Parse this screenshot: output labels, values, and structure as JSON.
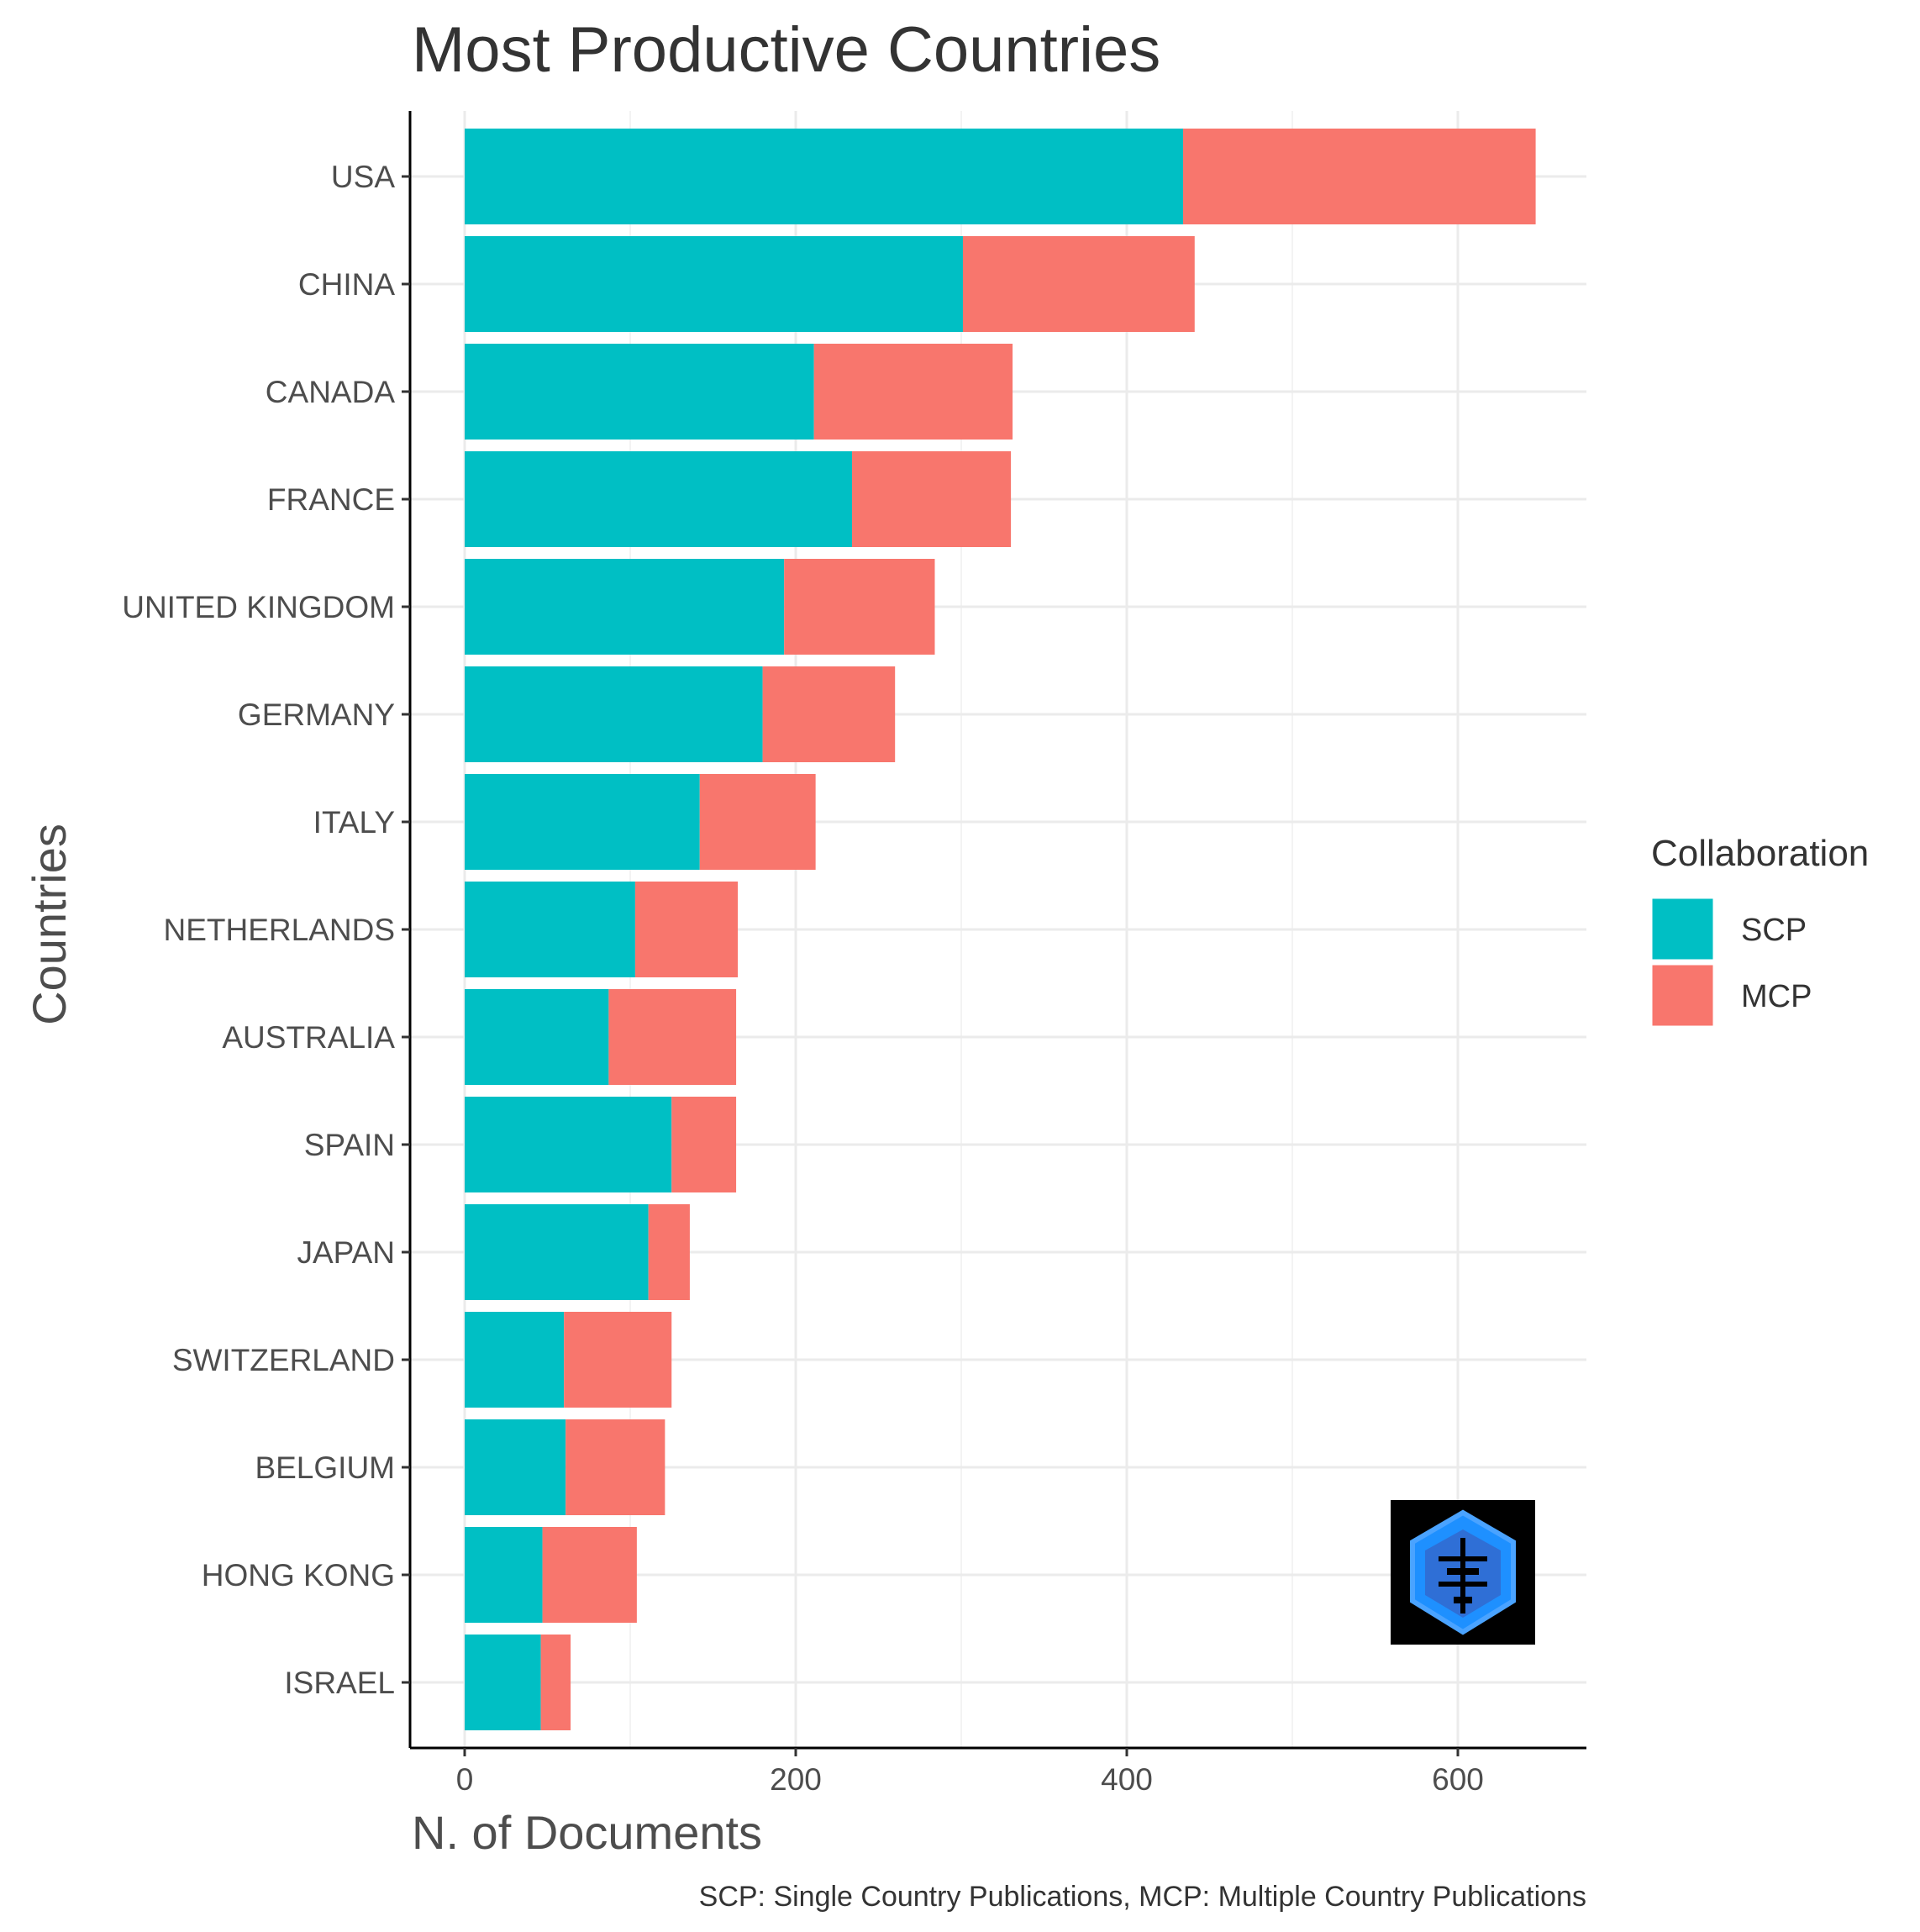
{
  "chart_data": {
    "type": "bar",
    "orientation": "horizontal",
    "stacked": true,
    "title": "Most Productive Countries",
    "xlabel": "N. of Documents",
    "ylabel": "Countries",
    "xlim": [
      0,
      680
    ],
    "xticks": [
      0,
      200,
      400,
      600
    ],
    "grid": true,
    "categories": [
      "USA",
      "CHINA",
      "CANADA",
      "FRANCE",
      "UNITED KINGDOM",
      "GERMANY",
      "ITALY",
      "NETHERLANDS",
      "AUSTRALIA",
      "SPAIN",
      "JAPAN",
      "SWITZERLAND",
      "BELGIUM",
      "HONG KONG",
      "ISRAEL"
    ],
    "series": [
      {
        "name": "SCP",
        "color": "#00BFC4",
        "values": [
          434,
          301,
          211,
          234,
          193,
          180,
          142,
          103,
          87,
          125,
          111,
          60,
          61,
          47,
          46
        ]
      },
      {
        "name": "MCP",
        "color": "#F8766D",
        "values": [
          213,
          140,
          120,
          96,
          91,
          80,
          70,
          62,
          77,
          39,
          25,
          65,
          60,
          57,
          18
        ]
      }
    ],
    "legend": {
      "title": "Collaboration",
      "position": "right"
    },
    "caption": "SCP: Single Country Publications, MCP: Multiple Country Publications"
  }
}
